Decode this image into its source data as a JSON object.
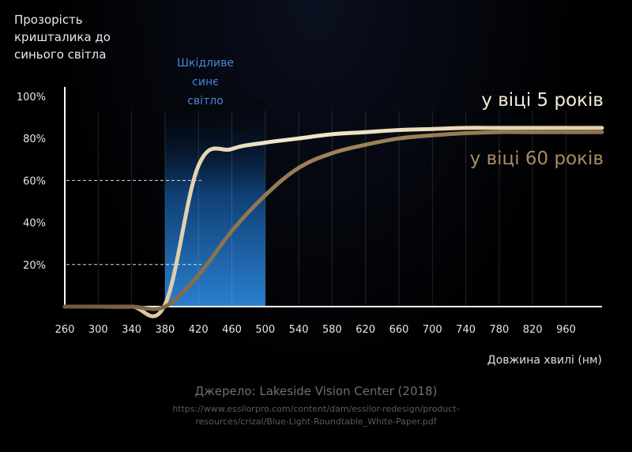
{
  "title": "Прозорість\nкришталика до\nсинього світла",
  "band_label": "Шкідливе\nсинє\nсвітло",
  "xlabel": "Довжина хвилі (нм)",
  "source": "Джерело: Lakeside Vision Center (2018)",
  "source_url": "https://www.essilorpro.com/content/dam/essilor-redesign/product-\nresources/crizal/Blue-Light-Roundtable_White-Paper.pdf",
  "colors": {
    "background": "#000000",
    "band": "#1f6fb8",
    "young": "#efe3c4",
    "old": "#8c7350",
    "guide": "#ffffff"
  },
  "chart_data": {
    "type": "line",
    "x": [
      "260",
      "300",
      "340",
      "380",
      "420",
      "460",
      "500",
      "540",
      "580",
      "620",
      "660",
      "700",
      "740",
      "780",
      "820",
      "960"
    ],
    "x_ticks": [
      "260",
      "300",
      "340",
      "380",
      "420",
      "460",
      "500",
      "540",
      "580",
      "620",
      "660",
      "700",
      "740",
      "780",
      "820",
      "960"
    ],
    "y_ticks": [
      "20%",
      "40%",
      "60%",
      "80%",
      "100%"
    ],
    "ylim": [
      0,
      100
    ],
    "highlight_band": {
      "from": "380",
      "to": "500",
      "label": "Шкідливе\nсинє\nсвітло"
    },
    "series": [
      {
        "name": "у віці 5 років",
        "values": [
          0,
          0,
          0,
          1,
          67,
          75,
          78,
          80,
          82,
          83,
          84,
          84.5,
          85,
          85,
          85,
          85
        ]
      },
      {
        "name": "у віці 60 років",
        "values": [
          0,
          0,
          0,
          0,
          15,
          36,
          53,
          66,
          73,
          77,
          80,
          81.5,
          82.5,
          83,
          83,
          83
        ]
      }
    ],
    "reference_lines": [
      {
        "y": 60,
        "to_x": "420"
      },
      {
        "y": 20,
        "to_x": "420"
      }
    ],
    "grid": true
  }
}
